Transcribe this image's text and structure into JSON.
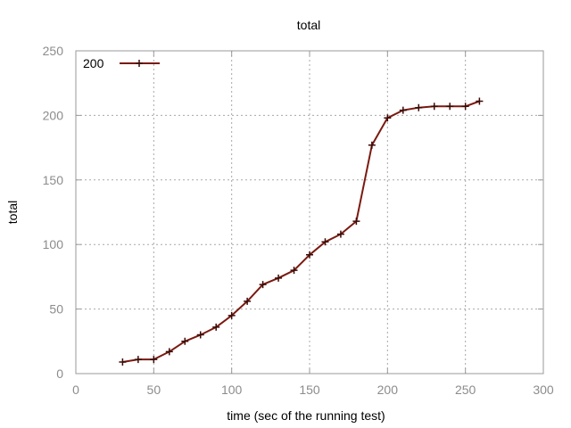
{
  "chart_data": {
    "type": "line",
    "title": "total",
    "xlabel": "time (sec of the running test)",
    "ylabel": "total",
    "xlim": [
      0,
      300
    ],
    "ylim": [
      0,
      250
    ],
    "xticks": [
      "0",
      "50",
      "100",
      "150",
      "200",
      "250",
      "300"
    ],
    "yticks": [
      "0",
      "50",
      "100",
      "150",
      "200",
      "250"
    ],
    "grid": true,
    "legend_position": "top-left",
    "series": [
      {
        "name": "200",
        "color": "#7a1a10",
        "marker": "plus",
        "x": [
          30,
          40,
          50,
          60,
          70,
          80,
          90,
          100,
          110,
          120,
          130,
          140,
          150,
          160,
          170,
          180,
          190,
          200,
          210,
          220,
          230,
          240,
          250,
          259
        ],
        "y": [
          9,
          11,
          11,
          17,
          25,
          30,
          36,
          45,
          56,
          69,
          74,
          80,
          92,
          102,
          108,
          118,
          177,
          198,
          204,
          206,
          207,
          207,
          207,
          211
        ]
      }
    ]
  }
}
